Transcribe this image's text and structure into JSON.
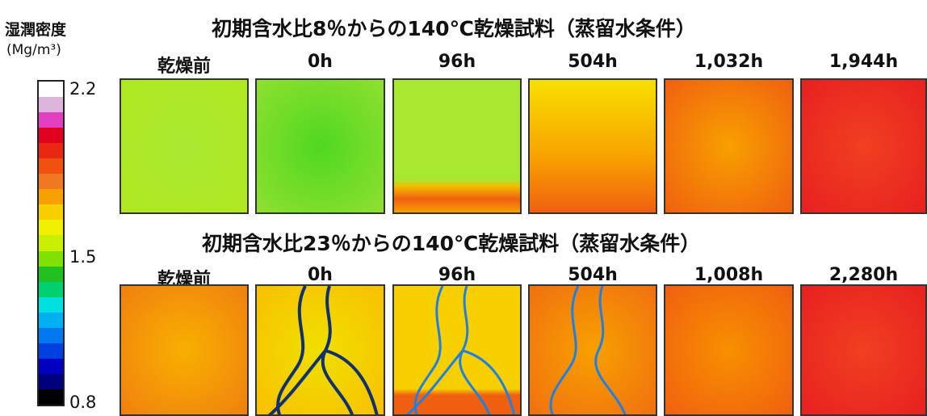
{
  "legend": {
    "title": "湿潤密度",
    "unit": "(Mg/m³)",
    "ticks": [
      "2.2",
      "1.5",
      "0.8"
    ]
  },
  "rows": [
    {
      "title": "初期含水比8％からの140℃乾燥試料（蒸留水条件）",
      "labels": [
        "乾燥前",
        "0h",
        "96h",
        "504h",
        "1,032h",
        "1,944h"
      ]
    },
    {
      "title": "初期含水比23％からの140℃乾燥試料（蒸留水条件）",
      "labels": [
        "乾燥前",
        "0h",
        "96h",
        "504h",
        "1,008h",
        "2,280h"
      ]
    }
  ]
}
